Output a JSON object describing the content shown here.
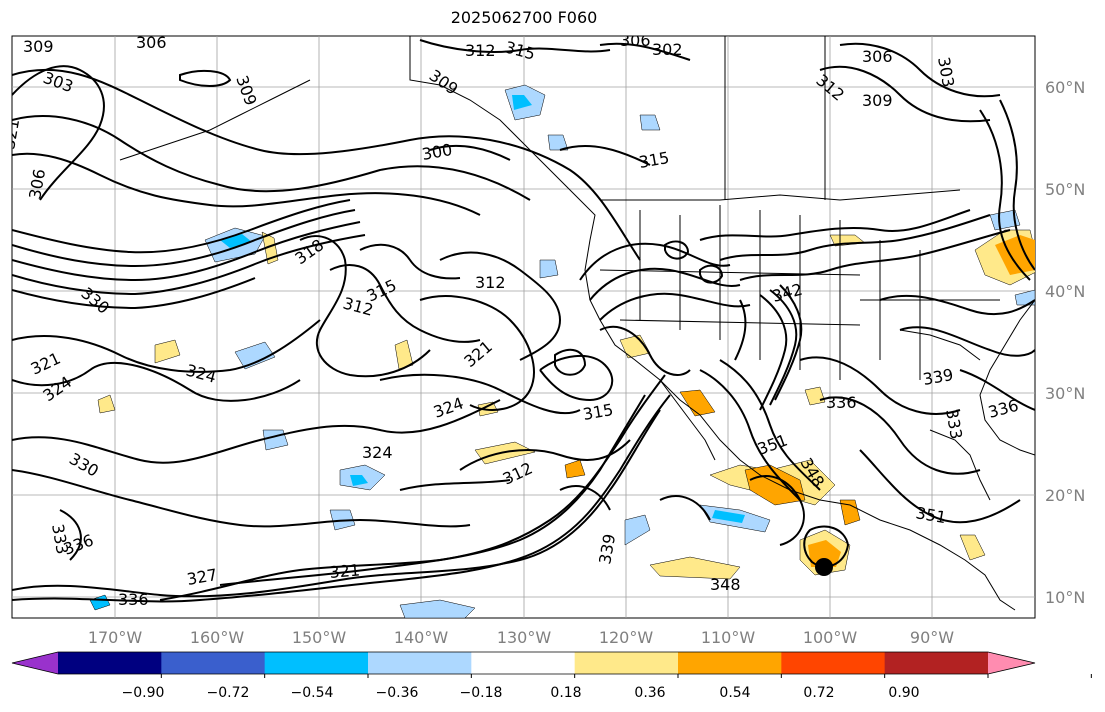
{
  "title": "2025062700 F060",
  "lat_labels": [
    "60°N",
    "50°N",
    "40°N",
    "30°N",
    "20°N",
    "10°N"
  ],
  "lon_labels": [
    "170°W",
    "160°W",
    "150°W",
    "140°W",
    "130°W",
    "120°W",
    "110°W",
    "100°W",
    "90°W"
  ],
  "contour_labels": [
    "309",
    "306",
    "303",
    "321",
    "309",
    "306",
    "309",
    "312",
    "315",
    "306",
    "302",
    "306",
    "303",
    "312",
    "309",
    "300",
    "315",
    "318",
    "330",
    "312",
    "315",
    "312",
    "342",
    "321",
    "324",
    "324",
    "324",
    "321",
    "330",
    "324",
    "315",
    "312",
    "339",
    "336",
    "333",
    "336",
    "351",
    "348",
    "333",
    "336",
    "327",
    "321",
    "348",
    "336",
    "351",
    "339"
  ],
  "colorbar": {
    "ticks": [
      "−0.90",
      "−0.72",
      "−0.54",
      "−0.36",
      "−0.18",
      "0.18",
      "0.36",
      "0.54",
      "0.72",
      "0.90"
    ],
    "colors": [
      "#9932cc",
      "#000080",
      "#3a5fcd",
      "#00bfff",
      "#add8ff",
      "#ffffff",
      "#ffe98a",
      "#ffa500",
      "#ff4500",
      "#b22222",
      "#ff8cb0"
    ]
  },
  "marker": "storm-center"
}
